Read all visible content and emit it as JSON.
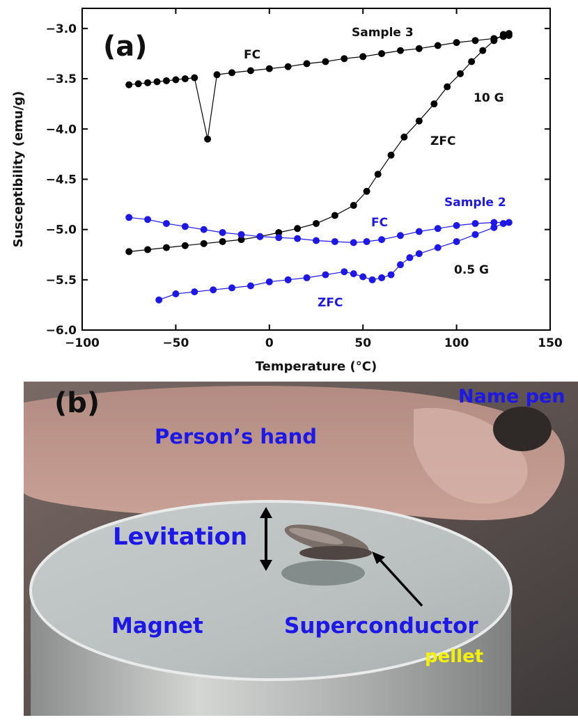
{
  "panel_a": {
    "label": "(a)",
    "annotations": {
      "sample3": "Sample 3",
      "fc3": "FC",
      "field3": "10 G",
      "zfc3": "ZFC",
      "sample2": "Sample 2",
      "fc2": "FC",
      "field2": "0.5 G",
      "zfc2": "ZFC"
    }
  },
  "panel_b": {
    "label": "(b)",
    "annotations": {
      "name_pen": "Name pen",
      "hand": "Person’s hand",
      "levitation": "Levitation",
      "magnet": "Magnet",
      "superconductor": "Superconductor",
      "pellet": "pellet"
    }
  },
  "chart_data": {
    "type": "scatter",
    "xlabel": "Temperature (°C)",
    "ylabel": "Susceptibility (emu/g)",
    "xlim": [
      -100,
      150
    ],
    "ylim": [
      -6.0,
      -2.8
    ],
    "xticks": [
      -100,
      -50,
      0,
      50,
      100,
      150
    ],
    "yticks": [
      -6.0,
      -5.5,
      -5.0,
      -4.5,
      -4.0,
      -3.5,
      -3.0
    ],
    "xtick_labels": [
      "−100",
      "−50",
      "0",
      "50",
      "100",
      "150"
    ],
    "ytick_labels": [
      "−6.0",
      "−5.5",
      "−5.0",
      "−4.5",
      "−4.0",
      "−3.5",
      "−3.0"
    ],
    "series": [
      {
        "name": "Sample 3 FC (10 G)",
        "color": "#000000",
        "x": [
          -75,
          -70,
          -65,
          -60,
          -55,
          -50,
          -45,
          -40,
          -33,
          -28,
          -20,
          -10,
          0,
          10,
          20,
          30,
          40,
          50,
          60,
          70,
          80,
          90,
          100,
          110,
          120,
          125,
          128
        ],
        "y": [
          -3.56,
          -3.55,
          -3.54,
          -3.53,
          -3.52,
          -3.51,
          -3.5,
          -3.49,
          -4.1,
          -3.46,
          -3.44,
          -3.42,
          -3.4,
          -3.38,
          -3.35,
          -3.33,
          -3.3,
          -3.28,
          -3.25,
          -3.22,
          -3.2,
          -3.17,
          -3.14,
          -3.12,
          -3.1,
          -3.08,
          -3.07
        ]
      },
      {
        "name": "Sample 3 ZFC (10 G)",
        "color": "#000000",
        "x": [
          -75,
          -65,
          -55,
          -45,
          -35,
          -25,
          -15,
          -5,
          5,
          15,
          25,
          35,
          45,
          52,
          58,
          65,
          72,
          80,
          88,
          95,
          102,
          108,
          114,
          120,
          125,
          128
        ],
        "y": [
          -5.22,
          -5.2,
          -5.18,
          -5.16,
          -5.14,
          -5.12,
          -5.1,
          -5.07,
          -5.03,
          -4.99,
          -4.94,
          -4.86,
          -4.76,
          -4.62,
          -4.45,
          -4.26,
          -4.08,
          -3.92,
          -3.75,
          -3.58,
          -3.45,
          -3.33,
          -3.22,
          -3.12,
          -3.06,
          -3.05
        ]
      },
      {
        "name": "Sample 2 FC (0.5 G)",
        "color": "#1d18e6",
        "x": [
          -75,
          -65,
          -55,
          -45,
          -35,
          -25,
          -15,
          -5,
          5,
          15,
          25,
          35,
          45,
          52,
          60,
          70,
          80,
          90,
          100,
          110,
          120,
          128
        ],
        "y": [
          -4.88,
          -4.9,
          -4.94,
          -4.97,
          -5.0,
          -5.03,
          -5.05,
          -5.07,
          -5.08,
          -5.09,
          -5.11,
          -5.12,
          -5.13,
          -5.12,
          -5.1,
          -5.06,
          -5.02,
          -4.99,
          -4.96,
          -4.94,
          -4.93,
          -4.93
        ]
      },
      {
        "name": "Sample 2 ZFC (0.5 G)",
        "color": "#1d18e6",
        "x": [
          -59,
          -50,
          -40,
          -30,
          -20,
          -10,
          0,
          10,
          20,
          30,
          40,
          45,
          50,
          55,
          60,
          65,
          70,
          75,
          80,
          90,
          100,
          110,
          120,
          125
        ],
        "y": [
          -5.7,
          -5.64,
          -5.62,
          -5.6,
          -5.58,
          -5.56,
          -5.52,
          -5.5,
          -5.48,
          -5.45,
          -5.42,
          -5.44,
          -5.47,
          -5.5,
          -5.48,
          -5.45,
          -5.35,
          -5.28,
          -5.24,
          -5.18,
          -5.12,
          -5.05,
          -4.98,
          -4.94
        ]
      }
    ]
  }
}
